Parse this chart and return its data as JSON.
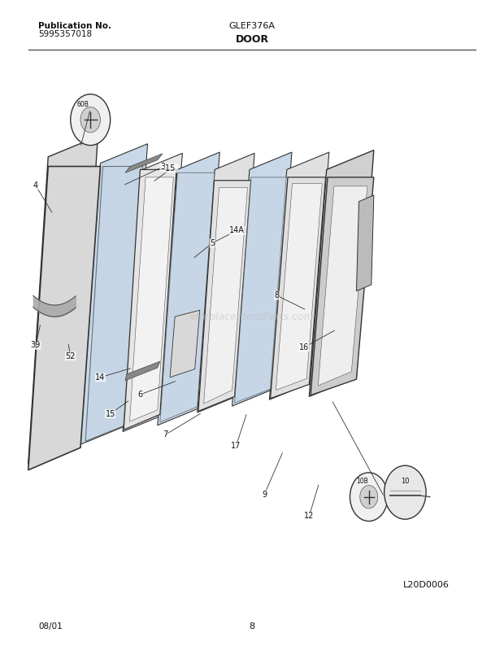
{
  "title_pub": "Publication No.",
  "title_pub_num": "5995357018",
  "title_model": "GLEF376A",
  "title_section": "DOOR",
  "footer_date": "08/01",
  "footer_page": "8",
  "diagram_id": "L20D0006",
  "watermark": "eReplacementParts.com",
  "bg_color": "#ffffff",
  "line_color": "#2a2a2a"
}
